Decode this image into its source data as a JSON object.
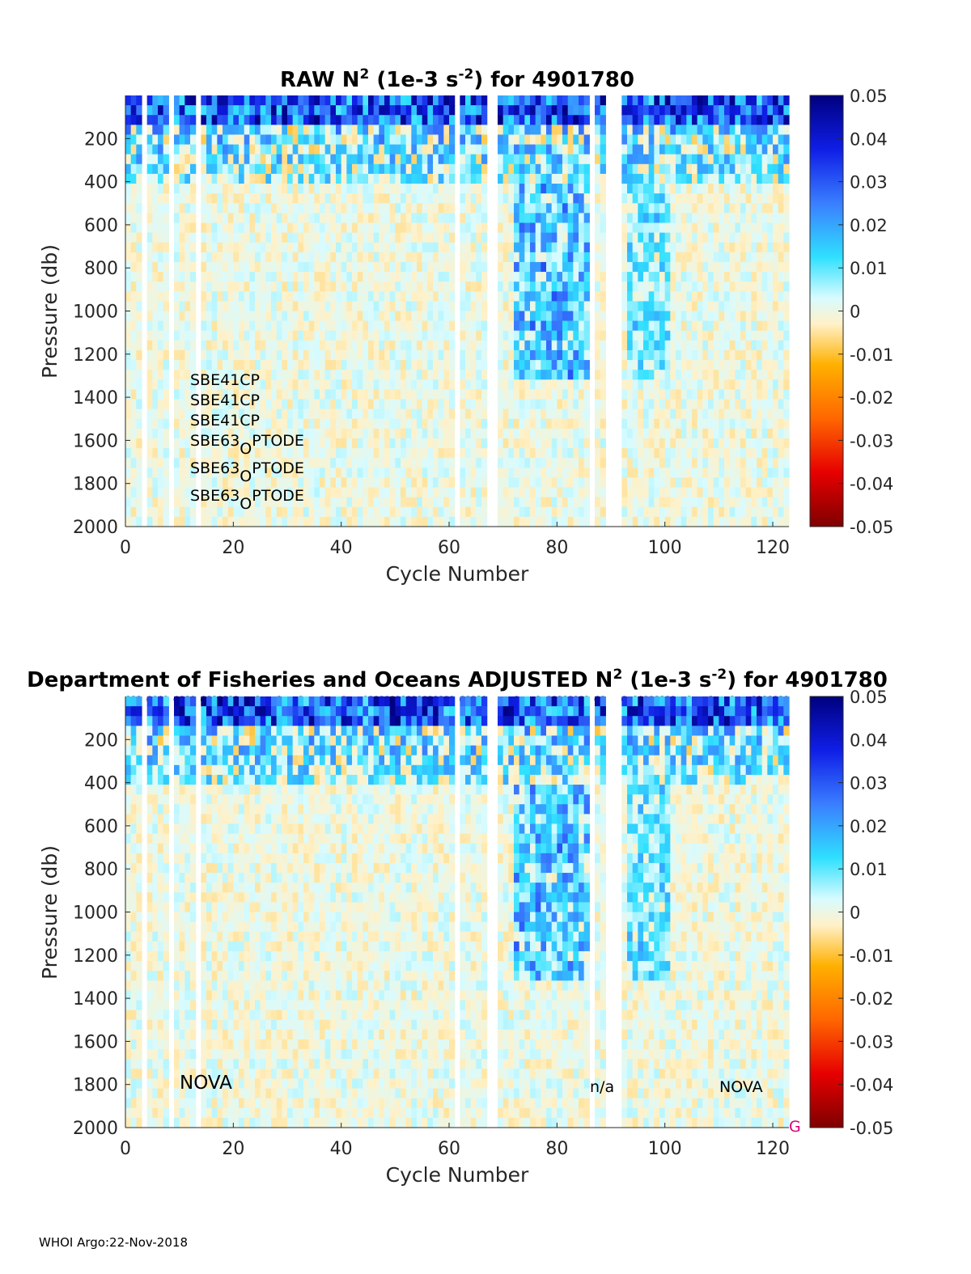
{
  "chart_data": [
    {
      "type": "heatmap",
      "title_prefix": "RAW N",
      "title_sup": "2",
      "title_mid": " (1e-3 s",
      "title_sup2": "-2",
      "title_suffix": ") for 4901780",
      "xlabel": "Cycle Number",
      "ylabel": "Pressure (db)",
      "xlim": [
        0,
        123
      ],
      "ylim": [
        0,
        2000
      ],
      "x_ticks": [
        "0",
        "20",
        "40",
        "60",
        "80",
        "100",
        "120"
      ],
      "y_ticks": [
        "200",
        "400",
        "600",
        "800",
        "1000",
        "1200",
        "1400",
        "1600",
        "1800",
        "2000"
      ],
      "colorbar": {
        "min": -0.05,
        "max": 0.05,
        "ticks": [
          "0.05",
          "0.04",
          "0.03",
          "0.02",
          "0.01",
          "0",
          "-0.01",
          "-0.02",
          "-0.03",
          "-0.04",
          "-0.05"
        ]
      },
      "missing_cycles": [
        3,
        8,
        13,
        61,
        67,
        68,
        86,
        89,
        90,
        91
      ],
      "annotations": {
        "sensor_1": "SBE41CP",
        "sensor_2": "SBE41CP",
        "sensor_3": "SBE41CP",
        "sensor_4_pre": "SBE63",
        "sensor_4_sub": "O",
        "sensor_4_post": "PTODE",
        "sensor_5_pre": "SBE63",
        "sensor_5_sub": "O",
        "sensor_5_post": "PTODE",
        "sensor_6_pre": "SBE63",
        "sensor_6_sub": "O",
        "sensor_6_post": "PTODE"
      }
    },
    {
      "type": "heatmap",
      "title_prefix": "Department of Fisheries and Oceans  ADJUSTED N",
      "title_sup": "2",
      "title_mid": " (1e-3 s",
      "title_sup2": "-2",
      "title_suffix": ") for 4901780",
      "xlabel": "Cycle Number",
      "ylabel": "Pressure (db)",
      "xlim": [
        0,
        123
      ],
      "ylim": [
        0,
        2000
      ],
      "x_ticks": [
        "0",
        "20",
        "40",
        "60",
        "80",
        "100",
        "120"
      ],
      "y_ticks": [
        "200",
        "400",
        "600",
        "800",
        "1000",
        "1200",
        "1400",
        "1600",
        "1800",
        "2000"
      ],
      "colorbar": {
        "min": -0.05,
        "max": 0.05,
        "ticks": [
          "0.05",
          "0.04",
          "0.03",
          "0.02",
          "0.01",
          "0",
          "-0.01",
          "-0.02",
          "-0.03",
          "-0.04",
          "-0.05"
        ]
      },
      "marker_symbol": "o",
      "annotations": {
        "left": "NOVA",
        "middle": "n/a",
        "right": "NOVA",
        "grade": "G"
      },
      "grade_color": "#e0007a"
    }
  ],
  "footer": "WHOI Argo:22-Nov-2018"
}
